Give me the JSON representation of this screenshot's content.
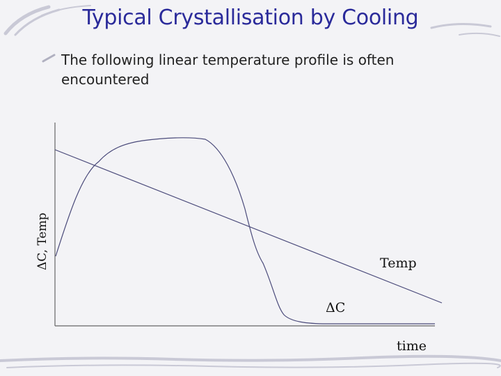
{
  "slide": {
    "title": "Typical Crystallisation by Cooling",
    "bullet": "The following linear temperature profile is often encountered"
  },
  "diagram": {
    "y_axis_label": "ΔC, Temp",
    "x_axis_label": "time",
    "temp_curve_label": "Temp",
    "supersaturation_curve_label": "ΔC"
  },
  "colors": {
    "title": "#2a2a9a",
    "curve": "#5a5a8a",
    "axis": "#666666"
  }
}
